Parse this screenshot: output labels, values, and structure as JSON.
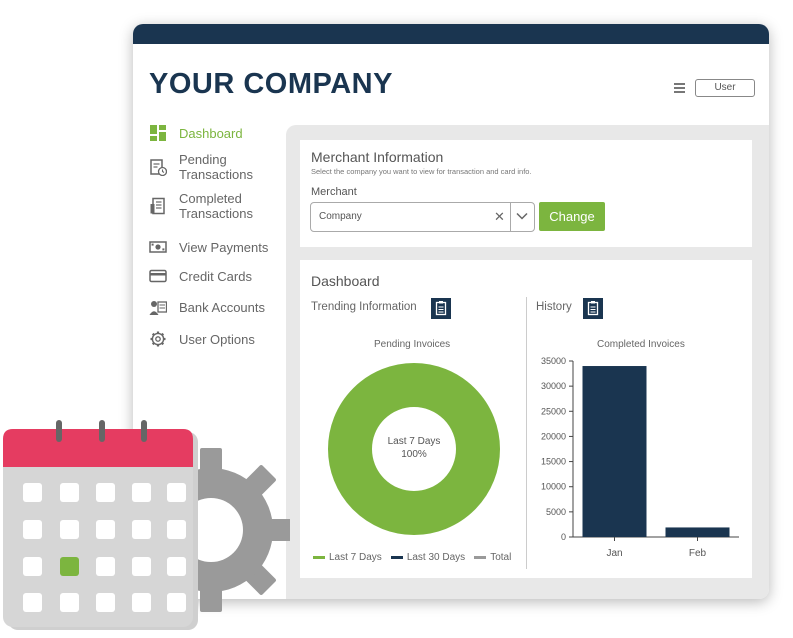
{
  "app": {
    "company_name": "YOUR COMPANY",
    "user_button": "User",
    "menu_icon": "hamburger-menu-icon"
  },
  "colors": {
    "navy": "#1a3550",
    "green": "#7cb53f",
    "red": "#e53c61",
    "gray": "#9a9a9a"
  },
  "sidebar": {
    "items": [
      {
        "label": "Dashboard",
        "icon": "dashboard-icon",
        "active": true
      },
      {
        "label": "Pending\nTransactions",
        "icon": "pending-transactions-icon"
      },
      {
        "label": "Completed\nTransactions",
        "icon": "completed-transactions-icon"
      },
      {
        "label": "View Payments",
        "icon": "payments-icon"
      },
      {
        "label": "Credit Cards",
        "icon": "credit-card-icon"
      },
      {
        "label": "Bank Accounts",
        "icon": "bank-accounts-icon"
      },
      {
        "label": "User Options",
        "icon": "gear-icon"
      }
    ]
  },
  "merchant": {
    "title": "Merchant Information",
    "subtitle": "Select the company you want to view for transaction and card info.",
    "field_label": "Merchant",
    "select_value": "Company",
    "clear_icon": "clear-x-icon",
    "dropdown_icon": "chevron-down-icon",
    "change_button": "Change"
  },
  "dashboard": {
    "title": "Dashboard",
    "trending_label": "Trending Information",
    "history_label": "History",
    "clipboard_icon": "clipboard-icon"
  },
  "chart_data": [
    {
      "type": "pie",
      "title": "Pending Invoices",
      "center_text": [
        "Last 7 Days",
        "100%"
      ],
      "slices": [
        {
          "name": "Last 7 Days",
          "value": 100,
          "color": "#7cb53f"
        }
      ],
      "legend": [
        {
          "name": "Last 7 Days",
          "color": "#7cb53f"
        },
        {
          "name": "Last 30 Days",
          "color": "#1a3550"
        },
        {
          "name": "Total",
          "color": "#9a9a9a"
        }
      ],
      "legend_position": "bottom"
    },
    {
      "type": "bar",
      "title": "Completed Invoices",
      "categories": [
        "Jan",
        "Feb"
      ],
      "values": [
        34000,
        1900
      ],
      "ylim": [
        0,
        35000
      ],
      "yticks": [
        0,
        5000,
        10000,
        15000,
        20000,
        25000,
        30000,
        35000
      ],
      "color": "#1a3550",
      "grid": false
    }
  ],
  "illustration": {
    "calendar_icon": "calendar-icon",
    "gear_icon": "gear-icon"
  }
}
